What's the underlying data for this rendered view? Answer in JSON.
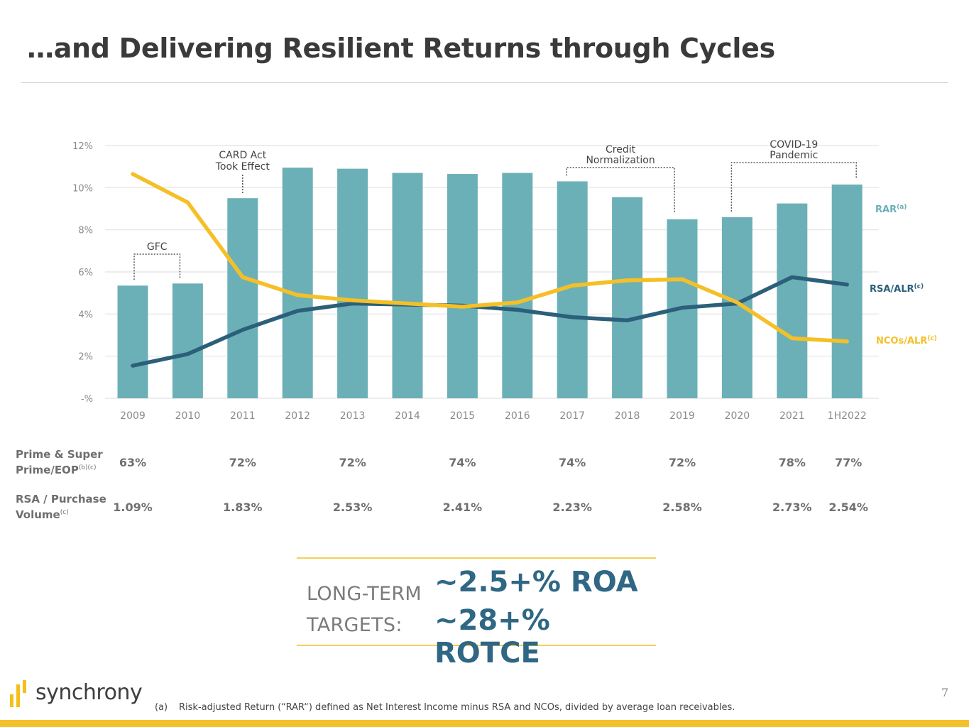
{
  "title": "…and Delivering Resilient Returns through Cycles",
  "chart_data": {
    "type": "bar",
    "categories": [
      "2009",
      "2010",
      "2011",
      "2012",
      "2013",
      "2014",
      "2015",
      "2016",
      "2017",
      "2018",
      "2019",
      "2020",
      "2021",
      "1H2022"
    ],
    "ylim": [
      0,
      12
    ],
    "yticks": [
      0,
      2,
      4,
      6,
      8,
      10,
      12
    ],
    "ytick_labels": [
      "-%",
      "2%",
      "4%",
      "6%",
      "8%",
      "10%",
      "12%"
    ],
    "grid": true,
    "series": [
      {
        "name": "RAR",
        "label": "RAR",
        "sup": "(a)",
        "kind": "bar",
        "color": "#6cb0b7",
        "values": [
          5.35,
          5.45,
          9.5,
          10.95,
          10.9,
          10.7,
          10.65,
          10.7,
          10.3,
          9.55,
          8.5,
          8.6,
          9.25,
          10.15
        ]
      },
      {
        "name": "RSA/ALR",
        "label": "RSA/ALR",
        "sup": "(c)",
        "kind": "line",
        "color": "#2c5f7a",
        "values": [
          1.55,
          2.1,
          3.25,
          4.15,
          4.5,
          4.45,
          4.4,
          4.2,
          3.85,
          3.7,
          4.3,
          4.5,
          5.75,
          5.4
        ]
      },
      {
        "name": "NCOs/ALR",
        "label": "NCOs/ALR",
        "sup": "(c)",
        "kind": "line",
        "color": "#f5c027",
        "values": [
          10.65,
          9.3,
          5.75,
          4.9,
          4.65,
          4.5,
          4.35,
          4.55,
          5.35,
          5.6,
          5.65,
          4.55,
          2.85,
          2.7
        ]
      }
    ],
    "annotations": [
      {
        "label": [
          "GFC"
        ],
        "from": "2009",
        "to": "2010"
      },
      {
        "label": [
          "CARD Act",
          "Took Effect"
        ],
        "at": "2011"
      },
      {
        "label": [
          "Credit",
          "Normalization"
        ],
        "from": "2017",
        "to": "2019"
      },
      {
        "label": [
          "COVID-19",
          "Pandemic"
        ],
        "from": "2020",
        "to": "1H2022"
      }
    ]
  },
  "metrics_table": {
    "rows": [
      {
        "label_line1": "Prime & Super",
        "label_line2": "Prime/EOP",
        "sup": "(b)(c)",
        "values": [
          {
            "year": "2009",
            "value": "63%"
          },
          {
            "year": "2011",
            "value": "72%"
          },
          {
            "year": "2013",
            "value": "72%"
          },
          {
            "year": "2015",
            "value": "74%"
          },
          {
            "year": "2017",
            "value": "74%"
          },
          {
            "year": "2019",
            "value": "72%"
          },
          {
            "year": "2021",
            "value": "78%"
          },
          {
            "year": "1H2022",
            "value": "77%"
          }
        ]
      },
      {
        "label_line1": "RSA / Purchase",
        "label_line2": "Volume",
        "sup": "(c)",
        "values": [
          {
            "year": "2009",
            "value": "1.09%"
          },
          {
            "year": "2011",
            "value": "1.83%"
          },
          {
            "year": "2013",
            "value": "2.53%"
          },
          {
            "year": "2015",
            "value": "2.41%"
          },
          {
            "year": "2017",
            "value": "2.23%"
          },
          {
            "year": "2019",
            "value": "2.58%"
          },
          {
            "year": "2021",
            "value": "2.73%"
          },
          {
            "year": "1H2022",
            "value": "2.54%"
          }
        ]
      }
    ]
  },
  "targets": {
    "label_line1": "LONG-TERM",
    "label_line2": "TARGETS:",
    "roa": "~2.5+% ROA",
    "rotce": "~28+% ROTCE"
  },
  "brand": {
    "name": "synchrony",
    "accent": "#f5c02e"
  },
  "footnote": {
    "mark": "(a)",
    "text": "Risk-adjusted Return (“RAR“) defined as Net Interest Income minus RSA and NCOs, divided by average loan receivables."
  },
  "page_number": "7"
}
